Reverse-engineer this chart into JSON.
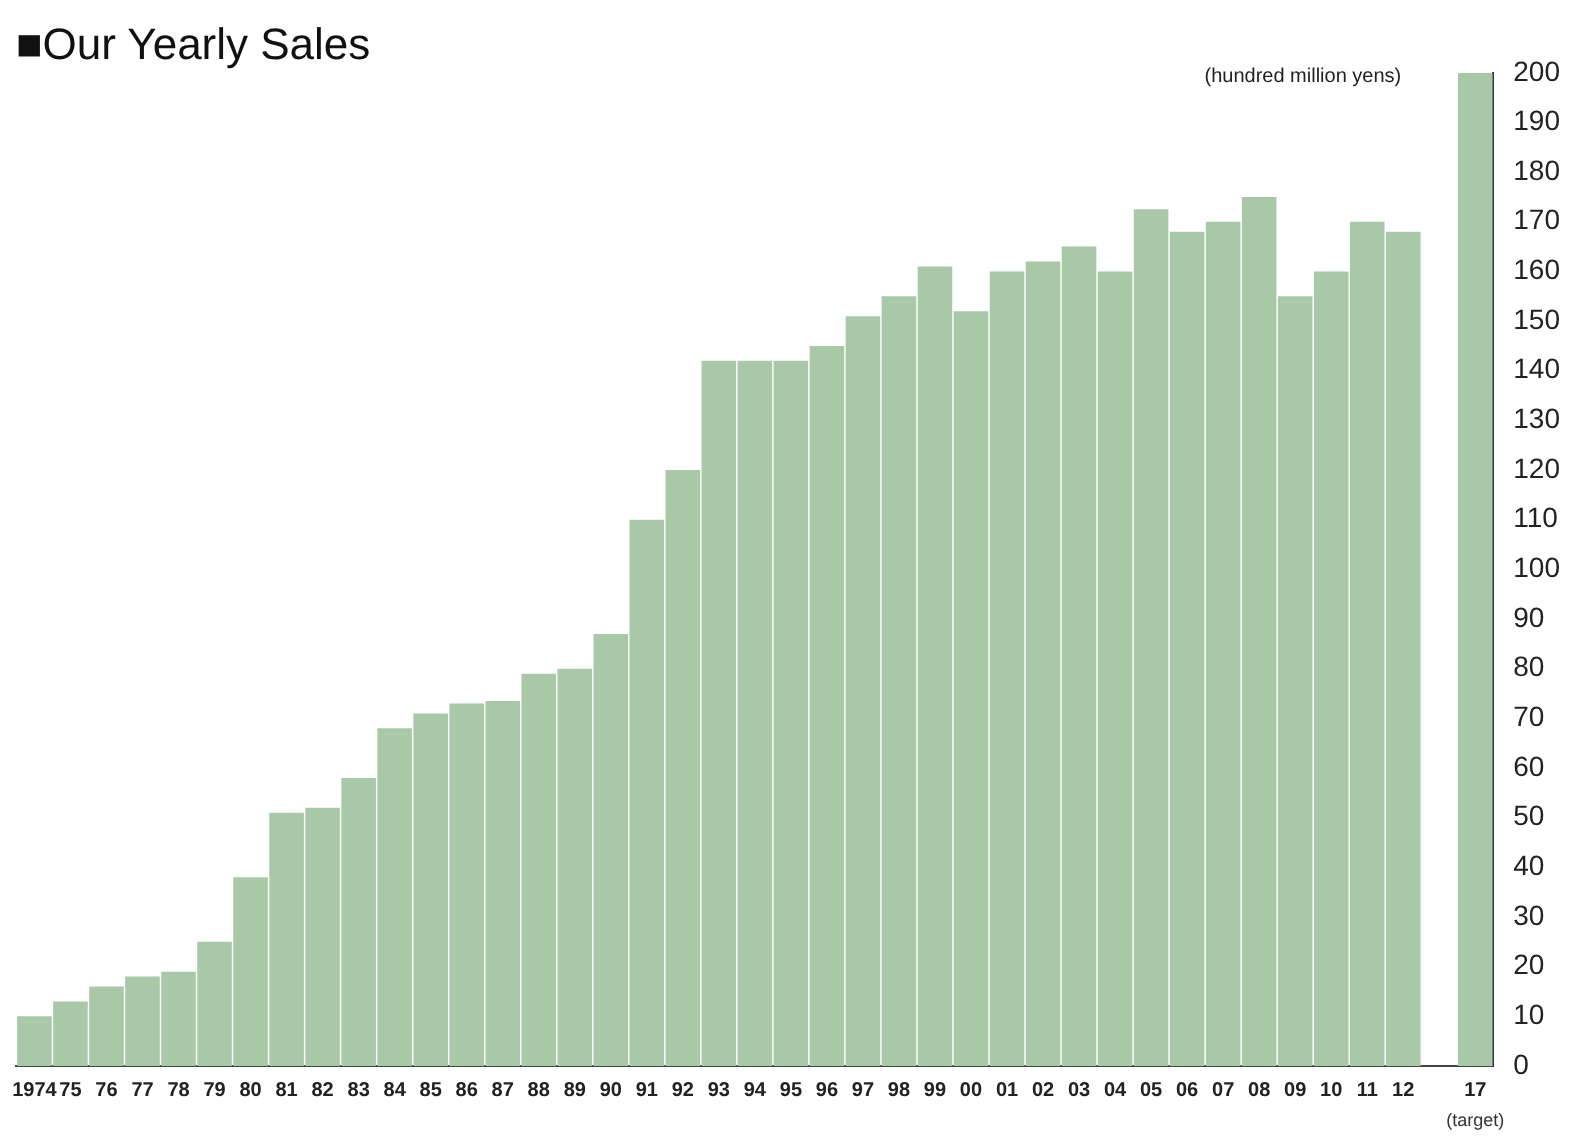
{
  "chart_data": {
    "type": "bar",
    "title": "■Our Yearly Sales",
    "ylabel": "(hundred million yens)",
    "categories": [
      "1974",
      "75",
      "76",
      "77",
      "78",
      "79",
      "80",
      "81",
      "82",
      "83",
      "84",
      "85",
      "86",
      "87",
      "88",
      "89",
      "90",
      "91",
      "92",
      "93",
      "94",
      "95",
      "96",
      "97",
      "98",
      "99",
      "00",
      "01",
      "02",
      "03",
      "04",
      "05",
      "06",
      "07",
      "08",
      "09",
      "10",
      "11",
      "12",
      null,
      "17"
    ],
    "values": [
      10,
      13,
      16,
      18,
      19,
      25,
      38,
      51,
      52,
      58,
      68,
      71,
      73,
      73.5,
      79,
      80,
      87,
      110,
      120,
      142,
      142,
      142,
      145,
      151,
      155,
      161,
      152,
      160,
      162,
      165,
      160,
      172.5,
      168,
      170,
      175,
      155,
      160,
      170,
      168,
      null,
      200
    ],
    "color": "#a8c8a8",
    "ylim": [
      0,
      200
    ],
    "yticks": [
      0,
      10,
      20,
      30,
      40,
      50,
      60,
      70,
      80,
      90,
      100,
      110,
      120,
      130,
      140,
      150,
      160,
      170,
      180,
      190,
      200
    ],
    "annotations": [
      "(target)"
    ],
    "grid": false,
    "legend": false
  }
}
